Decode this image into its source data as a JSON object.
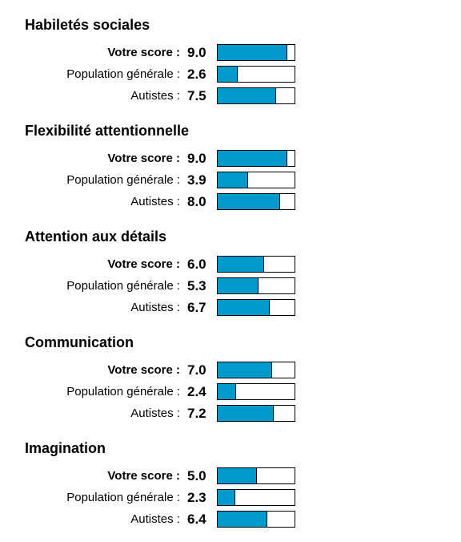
{
  "chart_data": {
    "type": "bar",
    "orientation": "horizontal",
    "xlim": [
      0,
      10
    ],
    "bar_color": "#0099cc",
    "bar_border_color": "#000000",
    "label_separator": " :",
    "categories": [
      "Votre score",
      "Population générale",
      "Autistes"
    ],
    "sections": [
      {
        "title": "Habiletés sociales",
        "rows": [
          {
            "label": "Votre score",
            "value_text": "9.0",
            "value": 9.0,
            "emphasis": true
          },
          {
            "label": "Population générale",
            "value_text": "2.6",
            "value": 2.6,
            "emphasis": false
          },
          {
            "label": "Autistes",
            "value_text": "7.5",
            "value": 7.5,
            "emphasis": false
          }
        ]
      },
      {
        "title": "Flexibilité attentionnelle",
        "rows": [
          {
            "label": "Votre score",
            "value_text": "9.0",
            "value": 9.0,
            "emphasis": true
          },
          {
            "label": "Population générale",
            "value_text": "3.9",
            "value": 3.9,
            "emphasis": false
          },
          {
            "label": "Autistes",
            "value_text": "8.0",
            "value": 8.0,
            "emphasis": false
          }
        ]
      },
      {
        "title": "Attention aux détails",
        "rows": [
          {
            "label": "Votre score",
            "value_text": "6.0",
            "value": 6.0,
            "emphasis": true
          },
          {
            "label": "Population générale",
            "value_text": "5.3",
            "value": 5.3,
            "emphasis": false
          },
          {
            "label": "Autistes",
            "value_text": "6.7",
            "value": 6.7,
            "emphasis": false
          }
        ]
      },
      {
        "title": "Communication",
        "rows": [
          {
            "label": "Votre score",
            "value_text": "7.0",
            "value": 7.0,
            "emphasis": true
          },
          {
            "label": "Population générale",
            "value_text": "2.4",
            "value": 2.4,
            "emphasis": false
          },
          {
            "label": "Autistes",
            "value_text": "7.2",
            "value": 7.2,
            "emphasis": false
          }
        ]
      },
      {
        "title": "Imagination",
        "rows": [
          {
            "label": "Votre score",
            "value_text": "5.0",
            "value": 5.0,
            "emphasis": true
          },
          {
            "label": "Population générale",
            "value_text": "2.3",
            "value": 2.3,
            "emphasis": false
          },
          {
            "label": "Autistes",
            "value_text": "6.4",
            "value": 6.4,
            "emphasis": false
          }
        ]
      }
    ]
  }
}
